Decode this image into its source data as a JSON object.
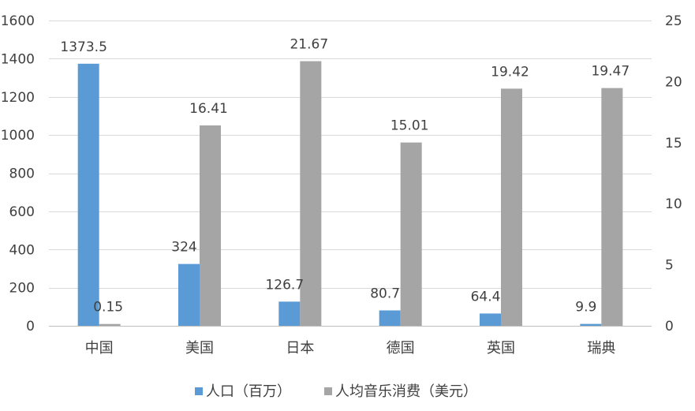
{
  "chart_data": {
    "type": "bar",
    "title": "",
    "categories": [
      "中国",
      "美国",
      "日本",
      "德国",
      "英国",
      "瑞典"
    ],
    "series": [
      {
        "name": "人口（百万）",
        "axis": "left",
        "color": "#5b9bd5",
        "values": [
          1373.5,
          324,
          126.7,
          80.7,
          64.4,
          9.9
        ],
        "labels": [
          "1373.5",
          "324",
          "126.7",
          "80.7",
          "64.4",
          "9.9"
        ]
      },
      {
        "name": "人均音乐消费（美元）",
        "axis": "right",
        "color": "#a5a5a5",
        "values": [
          0.15,
          16.41,
          21.67,
          15.01,
          19.42,
          19.47
        ],
        "labels": [
          "0.15",
          "16.41",
          "21.67",
          "15.01",
          "19.42",
          "19.47"
        ]
      }
    ],
    "y_left": {
      "min": 0,
      "max": 1600,
      "ticks": [
        0,
        200,
        400,
        600,
        800,
        1000,
        1200,
        1400,
        1600
      ],
      "label": ""
    },
    "y_right": {
      "min": 0,
      "max": 25,
      "ticks": [
        0,
        5,
        10,
        15,
        20,
        25
      ],
      "label": ""
    },
    "xlabel": "",
    "grid": true,
    "legend_position": "bottom"
  }
}
